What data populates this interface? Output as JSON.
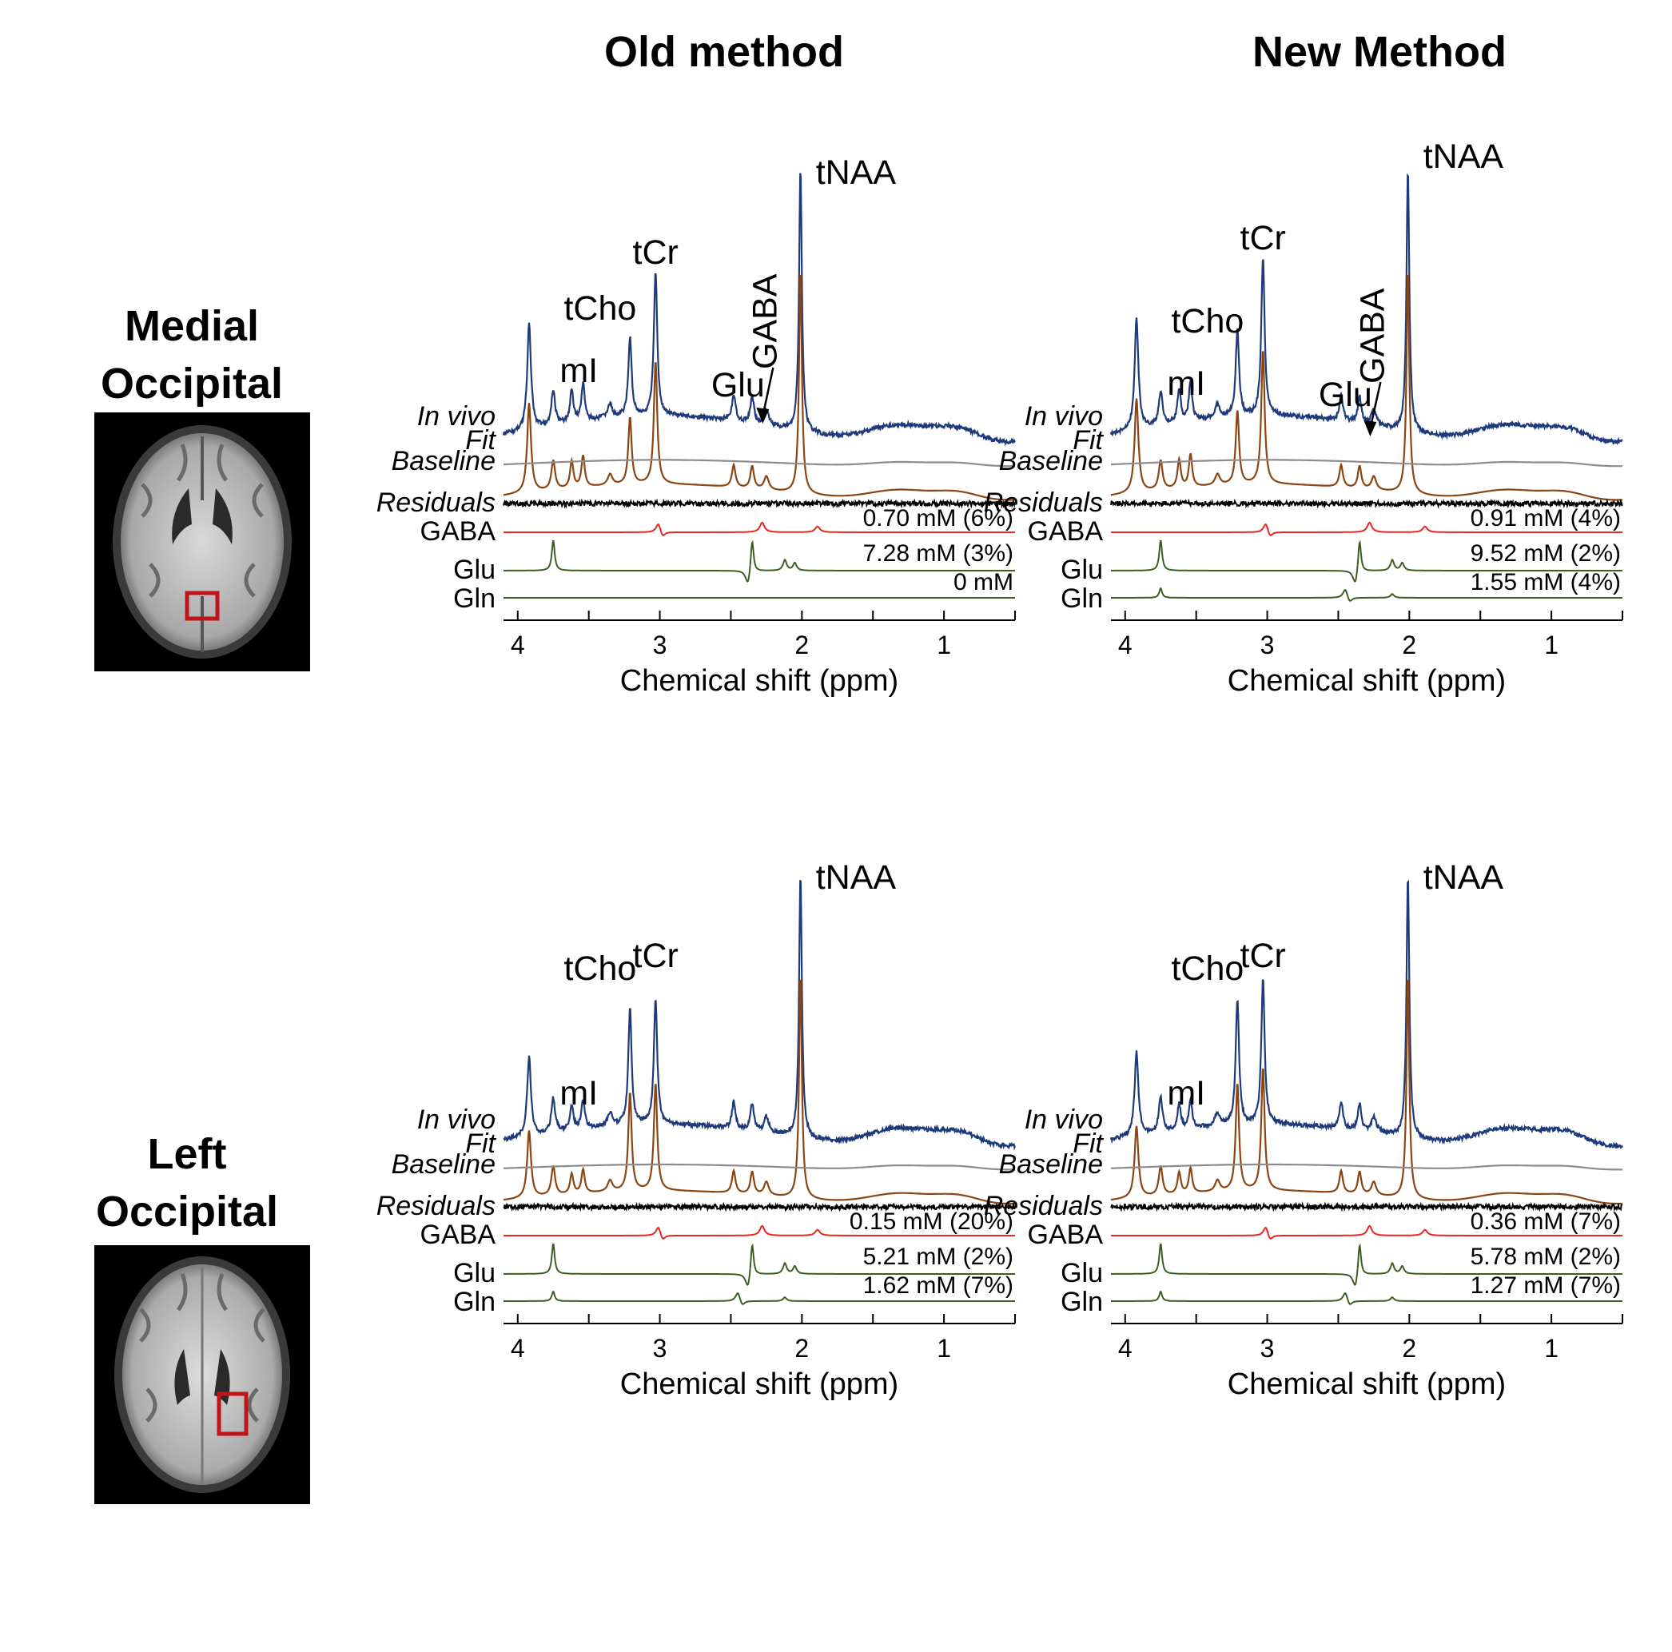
{
  "titles": {
    "old": "Old method",
    "new": "New Method"
  },
  "regions": [
    {
      "line1": "Medial",
      "line2": "Occipital"
    },
    {
      "line1": "Left",
      "line2": "Occipital"
    }
  ],
  "row_labels": {
    "invivo": "In vivo",
    "fit": "Fit",
    "baseline": "Baseline",
    "residuals": "Residuals",
    "gaba": "GABA",
    "glu": "Glu",
    "gln": "Gln"
  },
  "colors": {
    "invivo": "#1f3a7a",
    "fit": "#8b4513",
    "baseline": "#8c8c8c",
    "residuals": "#000000",
    "gaba": "#e8261f",
    "glu": "#3d5e23",
    "gln": "#3d5e23",
    "roi": "#c0141b"
  },
  "chart_data": [
    {
      "type": "line",
      "panel": "medial-old",
      "title": "Old method",
      "region": "Medial Occipital",
      "xlabel": "Chemical shift (ppm)",
      "xlim": [
        4.1,
        0.5
      ],
      "ticks": [
        "4",
        "3",
        "2",
        "1"
      ],
      "peaks": {
        "tNAA": "tNAA",
        "tCr": "tCr",
        "tCho": "tCho",
        "mI": "mI",
        "Glu": "Glu",
        "GABA": "GABA"
      },
      "amps": {
        "naa": 1.0,
        "cr": 0.55,
        "cho": 0.3,
        "mi": 0.4,
        "base": 0.12
      },
      "concentrations": {
        "gaba": "0.70  mM (6%)",
        "glu": "7.28  mM (3%)",
        "gln": "0 mM"
      },
      "gln_present": false,
      "has_arrow": true
    },
    {
      "type": "line",
      "panel": "medial-new",
      "title": "New Method",
      "region": "Medial Occipital",
      "xlabel": "Chemical shift (ppm)",
      "xlim": [
        4.1,
        0.5
      ],
      "ticks": [
        "4",
        "3",
        "2",
        "1"
      ],
      "peaks": {
        "tNAA": "tNAA",
        "tCr": "tCr",
        "tCho": "tCho",
        "mI": "mI",
        "Glu": "Glu",
        "GABA": "GABA"
      },
      "amps": {
        "naa": 1.0,
        "cr": 0.6,
        "cho": 0.33,
        "mi": 0.42,
        "base": 0.12
      },
      "concentrations": {
        "gaba": "0.91  mM (4%)",
        "glu": "9.52  mM (2%)",
        "gln": "1.55  mM (4%)"
      },
      "gln_present": true,
      "has_arrow": true
    },
    {
      "type": "line",
      "panel": "left-old",
      "title": "Old method",
      "region": "Left Occipital",
      "xlabel": "Chemical shift (ppm)",
      "xlim": [
        4.1,
        0.5
      ],
      "ticks": [
        "4",
        "3",
        "2",
        "1"
      ],
      "peaks": {
        "tNAA": "tNAA",
        "tCr": "tCr",
        "tCho": "tCho",
        "mI": "mI"
      },
      "amps": {
        "naa": 1.0,
        "cr": 0.48,
        "cho": 0.44,
        "mi": 0.3,
        "base": 0.1
      },
      "concentrations": {
        "gaba": "0.15  mM (20%)",
        "glu": "5.21  mM (2%)",
        "gln": "1.62  mM (7%)"
      },
      "gln_present": true,
      "has_arrow": false
    },
    {
      "type": "line",
      "panel": "left-new",
      "title": "New Method",
      "region": "Left Occipital",
      "xlabel": "Chemical shift (ppm)",
      "xlim": [
        4.1,
        0.5
      ],
      "ticks": [
        "4",
        "3",
        "2",
        "1"
      ],
      "peaks": {
        "tNAA": "tNAA",
        "tCr": "tCr",
        "tCho": "tCho",
        "mI": "mI"
      },
      "amps": {
        "naa": 1.0,
        "cr": 0.55,
        "cho": 0.48,
        "mi": 0.32,
        "base": 0.1
      },
      "concentrations": {
        "gaba": "0.36  mM (7%)",
        "glu": "5.78  mM (2%)",
        "gln": "1.27  mM (7%)"
      },
      "gln_present": true,
      "has_arrow": false
    }
  ]
}
